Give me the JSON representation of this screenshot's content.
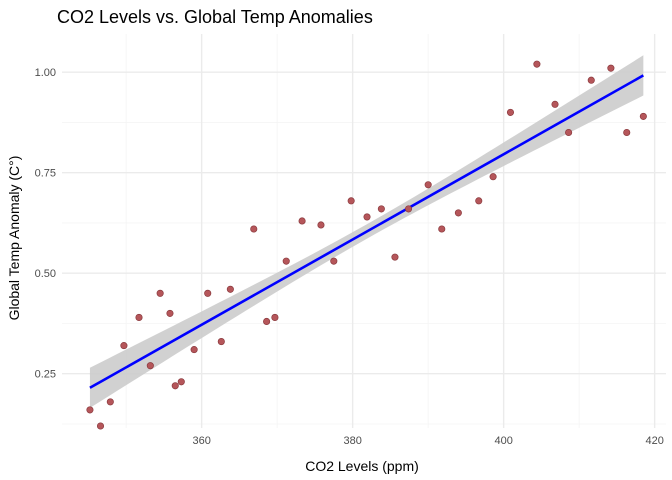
{
  "chart_data": {
    "type": "scatter",
    "title": "CO2 Levels vs. Global Temp Anomalies",
    "xlabel": "CO2 Levels (ppm)",
    "ylabel": "Global Temp Anomaly (C°)",
    "xlim": [
      341.5,
      421.5
    ],
    "ylim": [
      0.115,
      1.095
    ],
    "x_ticks": [
      360,
      380,
      400,
      420
    ],
    "x_minor_ticks": [
      350,
      370,
      390,
      410
    ],
    "y_ticks": [
      0.25,
      0.5,
      0.75,
      1.0
    ],
    "y_tick_labels": [
      "0.25",
      "0.50",
      "0.75",
      "1.00"
    ],
    "y_minor_ticks": [
      0.125,
      0.375,
      0.625,
      0.875
    ],
    "x_tick_labels": [
      "360",
      "380",
      "400",
      "420"
    ],
    "grid": true,
    "points": [
      {
        "x": 345.2,
        "y": 0.16
      },
      {
        "x": 346.6,
        "y": 0.12
      },
      {
        "x": 347.9,
        "y": 0.18
      },
      {
        "x": 349.7,
        "y": 0.32
      },
      {
        "x": 351.7,
        "y": 0.39
      },
      {
        "x": 353.2,
        "y": 0.27
      },
      {
        "x": 354.5,
        "y": 0.45
      },
      {
        "x": 355.8,
        "y": 0.4
      },
      {
        "x": 356.5,
        "y": 0.22
      },
      {
        "x": 357.3,
        "y": 0.23
      },
      {
        "x": 359.0,
        "y": 0.31
      },
      {
        "x": 360.8,
        "y": 0.45
      },
      {
        "x": 362.6,
        "y": 0.33
      },
      {
        "x": 363.8,
        "y": 0.46
      },
      {
        "x": 366.9,
        "y": 0.61
      },
      {
        "x": 368.6,
        "y": 0.38
      },
      {
        "x": 369.7,
        "y": 0.39
      },
      {
        "x": 371.2,
        "y": 0.53
      },
      {
        "x": 373.3,
        "y": 0.63
      },
      {
        "x": 375.8,
        "y": 0.62
      },
      {
        "x": 377.5,
        "y": 0.53
      },
      {
        "x": 379.8,
        "y": 0.68
      },
      {
        "x": 381.9,
        "y": 0.64
      },
      {
        "x": 383.8,
        "y": 0.66
      },
      {
        "x": 385.6,
        "y": 0.54
      },
      {
        "x": 387.4,
        "y": 0.66
      },
      {
        "x": 390.0,
        "y": 0.72
      },
      {
        "x": 391.8,
        "y": 0.61
      },
      {
        "x": 394.0,
        "y": 0.65
      },
      {
        "x": 396.7,
        "y": 0.68
      },
      {
        "x": 398.6,
        "y": 0.74
      },
      {
        "x": 400.9,
        "y": 0.9
      },
      {
        "x": 404.4,
        "y": 1.02
      },
      {
        "x": 406.8,
        "y": 0.92
      },
      {
        "x": 408.6,
        "y": 0.85
      },
      {
        "x": 411.6,
        "y": 0.98
      },
      {
        "x": 414.2,
        "y": 1.01
      },
      {
        "x": 416.3,
        "y": 0.85
      },
      {
        "x": 418.5,
        "y": 0.89
      }
    ],
    "trend": {
      "x_start": 345.2,
      "y_start": 0.215,
      "x_end": 418.5,
      "y_end": 0.992,
      "ci_half_width_at_ends": 0.05,
      "ci_half_width_at_center": 0.018
    },
    "colors": {
      "point_fill": "#b5565a",
      "point_stroke": "#8a3a3e",
      "trend_line": "#0000ff",
      "ci_band": "#cccccc",
      "grid_major": "#ebebeb",
      "grid_minor": "#f4f4f4"
    }
  }
}
